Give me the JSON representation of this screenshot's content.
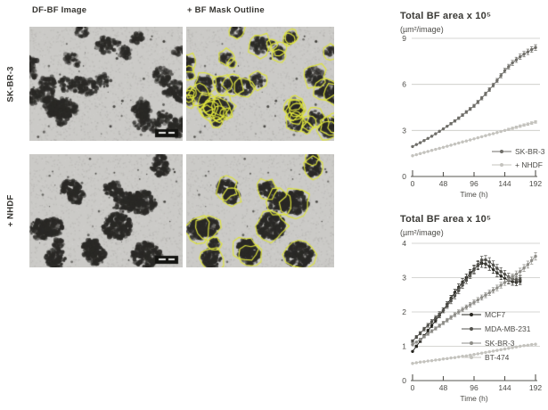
{
  "figure": {
    "column_headers": [
      "DF-BF Image",
      "+ BF Mask Outline"
    ],
    "row_labels": [
      "SK-BR-3",
      "+ NHDF"
    ],
    "mask_outline_color": "#dde33c",
    "panels": [
      {
        "name": "skbr3-dfbf-image",
        "row_label": "SK-BR-3",
        "column": "DF-BF Image",
        "mask_outline": false,
        "appearance": "many-small-dark-cell-clusters",
        "scale_bar": true
      },
      {
        "name": "skbr3-mask-outline-image",
        "row_label": "SK-BR-3",
        "column": "+ BF Mask Outline",
        "mask_outline": true,
        "appearance": "many-small-dark-cell-clusters-with-yellow-outline",
        "scale_bar": false
      },
      {
        "name": "nhdf-dfbf-image",
        "row_label": "+ NHDF",
        "column": "DF-BF Image",
        "mask_outline": false,
        "appearance": "few-large-dark-spheroids",
        "scale_bar": true
      },
      {
        "name": "nhdf-mask-outline-image",
        "row_label": "+ NHDF",
        "column": "+ BF Mask Outline",
        "mask_outline": true,
        "appearance": "few-large-dark-spheroids-with-yellow-outline",
        "scale_bar": false
      }
    ]
  },
  "chart_data": [
    {
      "type": "line",
      "title": "Total BF area x 10⁵",
      "subtitle": "(µm²/image)",
      "xlabel": "Time (h)",
      "xlim": [
        0,
        192
      ],
      "ylim": [
        0,
        9
      ],
      "xticks": [
        0,
        48,
        96,
        144,
        192
      ],
      "yticks": [
        0,
        3,
        6,
        9
      ],
      "grid": true,
      "legend_position": "inside-bottom-right",
      "x_step": 6,
      "series": [
        {
          "name": "SK-BR-3",
          "color": "#6f6e69",
          "x_start": 0,
          "err_frac": 0.022,
          "values": [
            1.95,
            2.08,
            2.2,
            2.34,
            2.48,
            2.62,
            2.78,
            2.94,
            3.1,
            3.27,
            3.44,
            3.62,
            3.8,
            4.0,
            4.2,
            4.4,
            4.6,
            4.85,
            5.1,
            5.38,
            5.66,
            5.95,
            6.25,
            6.57,
            6.9,
            7.15,
            7.4,
            7.6,
            7.8,
            7.97,
            8.12,
            8.27,
            8.4
          ]
        },
        {
          "name": "+ NHDF",
          "color": "#c4c3be",
          "x_start": 0,
          "err_frac": 0.025,
          "values": [
            1.35,
            1.42,
            1.49,
            1.56,
            1.63,
            1.7,
            1.77,
            1.83,
            1.9,
            1.97,
            2.04,
            2.11,
            2.18,
            2.25,
            2.31,
            2.38,
            2.45,
            2.52,
            2.59,
            2.66,
            2.73,
            2.79,
            2.86,
            2.93,
            3.0,
            3.07,
            3.14,
            3.21,
            3.28,
            3.35,
            3.41,
            3.48,
            3.55
          ]
        }
      ]
    },
    {
      "type": "line",
      "title": "Total BF area x 10⁵",
      "subtitle": "(µm²/image)",
      "xlabel": "Time (h)",
      "xlim": [
        0,
        192
      ],
      "ylim": [
        0,
        4
      ],
      "xticks": [
        0,
        48,
        96,
        144,
        192
      ],
      "yticks": [
        0,
        1,
        2,
        3,
        4
      ],
      "grid": true,
      "legend_position": "inside-middle-right",
      "x_step": 6,
      "series": [
        {
          "name": "MCF7",
          "color": "#26251f",
          "x_start": 0,
          "err_frac": 0.035,
          "values": [
            0.85,
            1.0,
            1.15,
            1.3,
            1.45,
            1.6,
            1.75,
            1.9,
            2.05,
            2.22,
            2.4,
            2.57,
            2.72,
            2.87,
            3.0,
            3.13,
            3.25,
            3.35,
            3.42,
            3.4,
            3.33,
            3.24,
            3.14,
            3.05,
            2.98,
            2.92,
            2.88,
            2.87,
            2.9
          ]
        },
        {
          "name": "MDA-MB-231",
          "color": "#52514c",
          "x_start": 0,
          "err_frac": 0.035,
          "values": [
            1.15,
            1.27,
            1.38,
            1.5,
            1.61,
            1.72,
            1.83,
            1.94,
            2.05,
            2.18,
            2.32,
            2.47,
            2.62,
            2.78,
            2.93,
            3.08,
            3.22,
            3.38,
            3.5,
            3.52,
            3.46,
            3.37,
            3.27,
            3.18,
            3.1,
            3.02,
            2.96,
            2.93,
            2.95
          ]
        },
        {
          "name": "SK-BR-3",
          "color": "#8e8d88",
          "x_start": 0,
          "err_frac": 0.03,
          "values": [
            1.05,
            1.12,
            1.2,
            1.28,
            1.36,
            1.44,
            1.52,
            1.6,
            1.68,
            1.76,
            1.84,
            1.92,
            2.0,
            2.07,
            2.14,
            2.21,
            2.28,
            2.35,
            2.42,
            2.49,
            2.56,
            2.63,
            2.7,
            2.78,
            2.86,
            2.94,
            3.02,
            3.1,
            3.18,
            3.28,
            3.38,
            3.5,
            3.62
          ]
        },
        {
          "name": "BT-474",
          "color": "#c4c3be",
          "x_start": 0,
          "err_frac": 0.008,
          "values": [
            0.5,
            0.52,
            0.54,
            0.55,
            0.57,
            0.58,
            0.6,
            0.61,
            0.63,
            0.64,
            0.66,
            0.67,
            0.69,
            0.71,
            0.72,
            0.74,
            0.76,
            0.78,
            0.8,
            0.82,
            0.84,
            0.86,
            0.88,
            0.9,
            0.92,
            0.94,
            0.96,
            0.98,
            1.0,
            1.02,
            1.03,
            1.05,
            1.06
          ]
        }
      ]
    }
  ]
}
